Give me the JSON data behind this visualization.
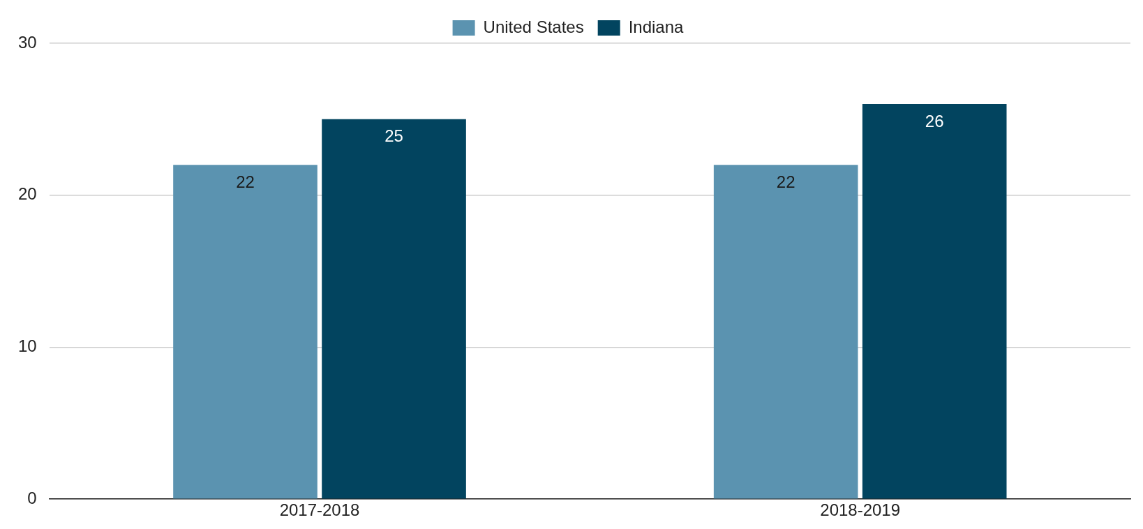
{
  "chart_data": {
    "type": "bar",
    "categories": [
      "2017-2018",
      "2018-2019"
    ],
    "series": [
      {
        "name": "United States",
        "color": "#5b93b0",
        "values": [
          22,
          22
        ]
      },
      {
        "name": "Indiana",
        "color": "#02445f",
        "values": [
          25,
          26
        ]
      }
    ],
    "ylim": [
      0,
      30
    ],
    "yticks": [
      0,
      10,
      20,
      30
    ],
    "grid": "y",
    "legend": "top",
    "data_labels": true
  }
}
